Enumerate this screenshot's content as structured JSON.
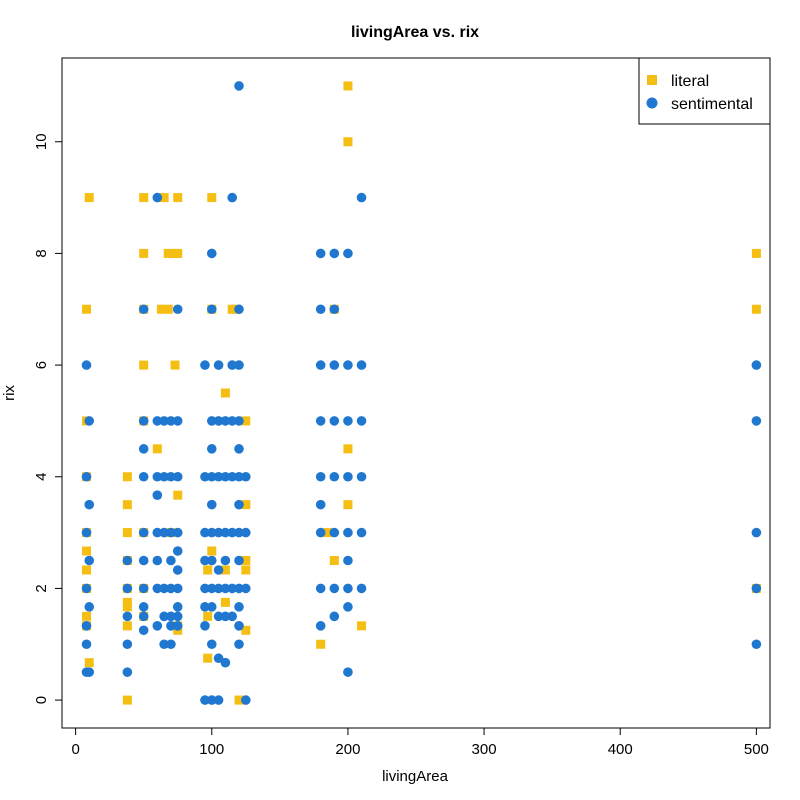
{
  "chart_data": {
    "type": "scatter",
    "title": "livingArea vs. rix",
    "xlabel": "livingArea",
    "ylabel": "rix",
    "xlim": [
      -10,
      510
    ],
    "ylim": [
      -0.5,
      11.5
    ],
    "xticks": [
      0,
      100,
      200,
      300,
      400,
      500
    ],
    "yticks": [
      0,
      2,
      4,
      6,
      8,
      10
    ],
    "grid": false,
    "legend_position": "top-right",
    "series": [
      {
        "name": "literal",
        "marker": "square",
        "color": "#F5BE13",
        "points": [
          [
            10,
            9
          ],
          [
            8,
            7
          ],
          [
            8,
            5
          ],
          [
            8,
            4
          ],
          [
            8,
            3
          ],
          [
            8,
            2.67
          ],
          [
            8,
            2.33
          ],
          [
            8,
            2
          ],
          [
            8,
            1.5
          ],
          [
            8,
            1.33
          ],
          [
            10,
            0.67
          ],
          [
            38,
            4
          ],
          [
            38,
            3.5
          ],
          [
            38,
            3
          ],
          [
            38,
            2.5
          ],
          [
            38,
            2
          ],
          [
            38,
            1.75
          ],
          [
            38,
            1.67
          ],
          [
            38,
            1.33
          ],
          [
            38,
            0
          ],
          [
            50,
            9
          ],
          [
            50,
            8
          ],
          [
            50,
            7
          ],
          [
            50,
            6
          ],
          [
            50,
            5
          ],
          [
            50,
            3
          ],
          [
            50,
            2
          ],
          [
            50,
            1.5
          ],
          [
            60,
            4.5
          ],
          [
            63,
            7
          ],
          [
            65,
            9
          ],
          [
            68,
            7
          ],
          [
            68,
            8
          ],
          [
            70,
            3
          ],
          [
            72,
            8
          ],
          [
            73,
            6
          ],
          [
            75,
            9
          ],
          [
            75,
            8
          ],
          [
            75,
            3.67
          ],
          [
            75,
            1.33
          ],
          [
            75,
            1.25
          ],
          [
            100,
            9
          ],
          [
            100,
            7
          ],
          [
            97,
            2.33
          ],
          [
            97,
            1.5
          ],
          [
            100,
            2.67
          ],
          [
            97,
            0.75
          ],
          [
            110,
            5.5
          ],
          [
            110,
            2.33
          ],
          [
            110,
            1.75
          ],
          [
            115,
            7
          ],
          [
            118,
            7
          ],
          [
            120,
            0
          ],
          [
            125,
            5
          ],
          [
            125,
            3.5
          ],
          [
            125,
            2.5
          ],
          [
            125,
            2.33
          ],
          [
            125,
            1.25
          ],
          [
            180,
            1
          ],
          [
            185,
            3
          ],
          [
            190,
            2.5
          ],
          [
            190,
            7
          ],
          [
            200,
            11
          ],
          [
            200,
            10
          ],
          [
            200,
            4.5
          ],
          [
            200,
            3.5
          ],
          [
            210,
            1.33
          ],
          [
            500,
            8
          ],
          [
            500,
            7
          ],
          [
            500,
            2
          ]
        ]
      },
      {
        "name": "sentimental",
        "marker": "circle",
        "color": "#1F77D0",
        "points": [
          [
            8,
            6
          ],
          [
            10,
            5
          ],
          [
            8,
            4
          ],
          [
            10,
            3.5
          ],
          [
            8,
            3
          ],
          [
            10,
            2.5
          ],
          [
            8,
            2
          ],
          [
            10,
            1.67
          ],
          [
            8,
            1.33
          ],
          [
            8,
            1
          ],
          [
            8,
            0.5
          ],
          [
            10,
            0.5
          ],
          [
            38,
            2.5
          ],
          [
            38,
            2
          ],
          [
            38,
            1.5
          ],
          [
            38,
            1
          ],
          [
            38,
            0.5
          ],
          [
            50,
            7
          ],
          [
            50,
            5
          ],
          [
            50,
            4.5
          ],
          [
            50,
            4
          ],
          [
            50,
            3
          ],
          [
            50,
            2.5
          ],
          [
            50,
            2
          ],
          [
            50,
            1.67
          ],
          [
            50,
            1.5
          ],
          [
            50,
            1.25
          ],
          [
            60,
            9
          ],
          [
            60,
            5
          ],
          [
            60,
            4
          ],
          [
            60,
            3.67
          ],
          [
            60,
            3
          ],
          [
            60,
            2.5
          ],
          [
            60,
            2
          ],
          [
            60,
            1.33
          ],
          [
            65,
            5
          ],
          [
            65,
            4
          ],
          [
            65,
            3
          ],
          [
            65,
            2
          ],
          [
            65,
            1.5
          ],
          [
            65,
            1
          ],
          [
            70,
            5
          ],
          [
            70,
            4
          ],
          [
            70,
            3
          ],
          [
            70,
            2.5
          ],
          [
            70,
            2
          ],
          [
            70,
            1.5
          ],
          [
            70,
            1.33
          ],
          [
            70,
            1
          ],
          [
            75,
            7
          ],
          [
            75,
            5
          ],
          [
            75,
            4
          ],
          [
            75,
            3
          ],
          [
            75,
            2.67
          ],
          [
            75,
            2.33
          ],
          [
            75,
            2
          ],
          [
            75,
            1.67
          ],
          [
            75,
            1.5
          ],
          [
            75,
            1.33
          ],
          [
            95,
            6
          ],
          [
            95,
            4
          ],
          [
            95,
            3
          ],
          [
            95,
            2.5
          ],
          [
            95,
            2
          ],
          [
            95,
            1.67
          ],
          [
            95,
            1.33
          ],
          [
            95,
            0
          ],
          [
            100,
            8
          ],
          [
            100,
            7
          ],
          [
            100,
            5
          ],
          [
            100,
            4.5
          ],
          [
            100,
            4
          ],
          [
            100,
            3.5
          ],
          [
            100,
            3
          ],
          [
            100,
            2.5
          ],
          [
            100,
            2
          ],
          [
            100,
            1.67
          ],
          [
            100,
            1
          ],
          [
            100,
            0
          ],
          [
            105,
            6
          ],
          [
            105,
            5
          ],
          [
            105,
            4
          ],
          [
            105,
            3
          ],
          [
            105,
            2.33
          ],
          [
            105,
            2
          ],
          [
            105,
            1.5
          ],
          [
            105,
            0.75
          ],
          [
            105,
            0
          ],
          [
            110,
            5
          ],
          [
            110,
            4
          ],
          [
            110,
            3
          ],
          [
            110,
            2.5
          ],
          [
            110,
            2
          ],
          [
            110,
            1.5
          ],
          [
            110,
            0.67
          ],
          [
            115,
            9
          ],
          [
            115,
            6
          ],
          [
            115,
            5
          ],
          [
            115,
            4
          ],
          [
            115,
            3
          ],
          [
            115,
            2
          ],
          [
            115,
            1.5
          ],
          [
            120,
            11
          ],
          [
            120,
            7
          ],
          [
            120,
            6
          ],
          [
            120,
            5
          ],
          [
            120,
            4.5
          ],
          [
            120,
            4
          ],
          [
            120,
            3.5
          ],
          [
            120,
            3
          ],
          [
            120,
            2.5
          ],
          [
            120,
            2
          ],
          [
            120,
            1.67
          ],
          [
            120,
            1.33
          ],
          [
            120,
            1
          ],
          [
            125,
            4
          ],
          [
            125,
            3
          ],
          [
            125,
            2
          ],
          [
            125,
            0
          ],
          [
            180,
            8
          ],
          [
            180,
            7
          ],
          [
            180,
            6
          ],
          [
            180,
            5
          ],
          [
            180,
            4
          ],
          [
            180,
            3.5
          ],
          [
            180,
            3
          ],
          [
            180,
            2
          ],
          [
            180,
            1.33
          ],
          [
            190,
            8
          ],
          [
            190,
            7
          ],
          [
            190,
            6
          ],
          [
            190,
            5
          ],
          [
            190,
            4
          ],
          [
            190,
            3
          ],
          [
            190,
            2
          ],
          [
            190,
            1.5
          ],
          [
            200,
            8
          ],
          [
            200,
            6
          ],
          [
            200,
            5
          ],
          [
            200,
            4
          ],
          [
            200,
            3
          ],
          [
            200,
            2.5
          ],
          [
            200,
            2
          ],
          [
            200,
            1.67
          ],
          [
            200,
            0.5
          ],
          [
            210,
            9
          ],
          [
            210,
            6
          ],
          [
            210,
            5
          ],
          [
            210,
            4
          ],
          [
            210,
            3
          ],
          [
            210,
            2
          ],
          [
            500,
            6
          ],
          [
            500,
            5
          ],
          [
            500,
            3
          ],
          [
            500,
            2
          ],
          [
            500,
            1
          ]
        ]
      }
    ]
  }
}
